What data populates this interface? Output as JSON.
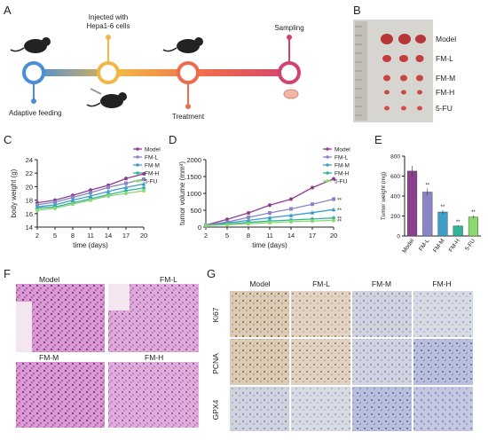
{
  "figure": {
    "panel_labels": [
      "A",
      "B",
      "C",
      "D",
      "E",
      "F",
      "G"
    ]
  },
  "timeline": {
    "labels": {
      "injected": [
        "Injected with",
        "Hepa1-6 cells"
      ],
      "sampling": "Sampling",
      "adaptive": "Adaptive feeding",
      "treatment": "Treatment"
    },
    "colors": [
      "#4a8fd6",
      "#f2b646",
      "#ef6b4d",
      "#d3416f"
    ]
  },
  "photo": {
    "rows": [
      "Model",
      "FM-L",
      "FM-M",
      "FM-H",
      "5-FU"
    ]
  },
  "series_colors": {
    "Model": "#8c3f8f",
    "FM-L": "#8a86c6",
    "FM-M": "#3e9ec8",
    "FM-H": "#2fb39a",
    "5-FU": "#8bd86f"
  },
  "chart_data": [
    {
      "panel": "C",
      "type": "line",
      "xlabel": "time (days)",
      "ylabel": "body weight (g)",
      "x": [
        2,
        5,
        8,
        11,
        14,
        17,
        20
      ],
      "xticks": [
        "2",
        "5",
        "8",
        "11",
        "14",
        "17",
        "20"
      ],
      "ylim": [
        14,
        24
      ],
      "yticks": [
        "14",
        "16",
        "18",
        "20",
        "22",
        "24"
      ],
      "legend_position": "top-right",
      "series": [
        {
          "name": "Model",
          "values": [
            17.6,
            18.0,
            18.7,
            19.5,
            20.2,
            21.2,
            21.9
          ]
        },
        {
          "name": "FM-L",
          "values": [
            17.3,
            17.7,
            18.4,
            19.1,
            19.9,
            20.5,
            21.1
          ]
        },
        {
          "name": "FM-M",
          "values": [
            17.0,
            17.3,
            18.0,
            18.6,
            19.3,
            19.9,
            20.4
          ]
        },
        {
          "name": "FM-H",
          "values": [
            16.8,
            17.0,
            17.6,
            18.2,
            18.8,
            19.4,
            19.8
          ]
        },
        {
          "name": "5-FU",
          "values": [
            16.5,
            16.8,
            17.4,
            18.0,
            18.6,
            19.0,
            19.4
          ]
        }
      ]
    },
    {
      "panel": "D",
      "type": "line",
      "xlabel": "time (days)",
      "ylabel": "tumor volume (mm³)",
      "x": [
        2,
        5,
        8,
        11,
        14,
        17,
        20
      ],
      "xticks": [
        "2",
        "5",
        "8",
        "11",
        "14",
        "17",
        "20"
      ],
      "ylim": [
        0,
        2000
      ],
      "yticks": [
        "0",
        "500",
        "1000",
        "1500",
        "2000"
      ],
      "legend_position": "top-right",
      "annotations": [
        "**",
        "**",
        "**",
        "**"
      ],
      "series": [
        {
          "name": "Model",
          "values": [
            60,
            230,
            420,
            650,
            830,
            1170,
            1430
          ]
        },
        {
          "name": "FM-L",
          "values": [
            55,
            150,
            290,
            420,
            540,
            680,
            830
          ]
        },
        {
          "name": "FM-M",
          "values": [
            50,
            120,
            200,
            280,
            350,
            430,
            520
          ]
        },
        {
          "name": "FM-H",
          "values": [
            50,
            90,
            140,
            180,
            210,
            240,
            270
          ]
        },
        {
          "name": "5-FU",
          "values": [
            45,
            70,
            100,
            130,
            160,
            180,
            200
          ]
        }
      ]
    },
    {
      "panel": "E",
      "type": "bar",
      "ylabel": "Tumor weight (mg)",
      "categories": [
        "Model",
        "FM-L",
        "FM-M",
        "FM-H",
        "5-FU"
      ],
      "values": [
        650,
        440,
        240,
        100,
        190
      ],
      "ylim": [
        0,
        800
      ],
      "yticks": [
        "0",
        "200",
        "400",
        "600",
        "800"
      ],
      "annotations": [
        "**",
        "**",
        "**",
        "**"
      ]
    }
  ],
  "histology_F": {
    "labels": [
      "Model",
      "FM-L",
      "FM-M",
      "FM-H"
    ]
  },
  "histology_G": {
    "columns": [
      "Model",
      "FM-L",
      "FM-M",
      "FM-H"
    ],
    "rows": [
      "Ki67",
      "PCNA",
      "GPX4"
    ]
  }
}
